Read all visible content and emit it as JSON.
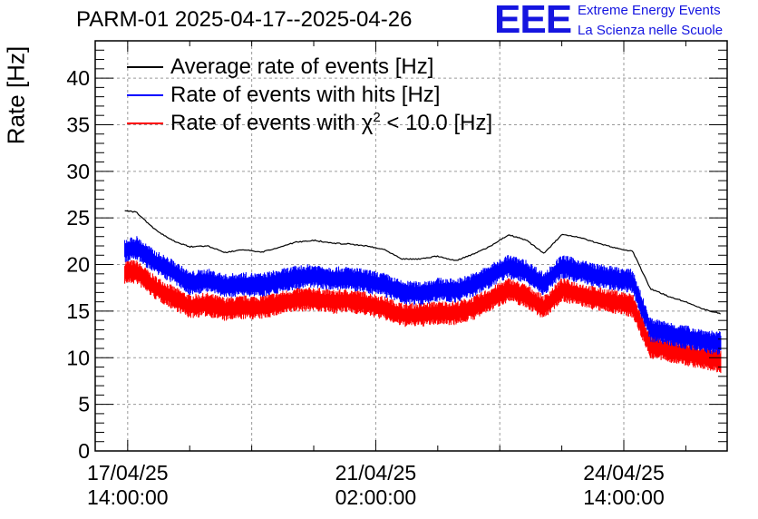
{
  "title": "PARM-01 2025-04-17--2025-04-26",
  "logo": {
    "mark": "EEE",
    "line1": "Extreme Energy Events",
    "line2": "La Scienza nelle Scuole",
    "color": "#1515e0"
  },
  "chart_data": {
    "type": "line",
    "title": "PARM-01 2025-04-17--2025-04-26",
    "xlabel": "",
    "ylabel": "Rate [Hz]",
    "ylim": [
      0,
      44
    ],
    "yticks": [
      0,
      5,
      10,
      15,
      20,
      25,
      30,
      35,
      40
    ],
    "xlim": [
      "2025-04-17 03:00",
      "2025-04-26 01:00"
    ],
    "xticks": [
      {
        "x": "2025-04-17 14:00",
        "line1": "17/04/25",
        "line2": "14:00:00"
      },
      {
        "x": "2025-04-21 02:00",
        "line1": "21/04/25",
        "line2": "02:00:00"
      },
      {
        "x": "2025-04-24 14:00",
        "line1": "24/04/25",
        "line2": "14:00:00"
      }
    ],
    "grid": true,
    "legend_position": "top-left",
    "series": [
      {
        "name": "Average rate of events [Hz]",
        "color": "#000000",
        "style": "line",
        "x": [
          "2025-04-17 13:00",
          "2025-04-17 17:00",
          "2025-04-17 23:00",
          "2025-04-18 05:00",
          "2025-04-18 11:00",
          "2025-04-18 17:00",
          "2025-04-18 23:00",
          "2025-04-19 05:00",
          "2025-04-19 11:00",
          "2025-04-19 17:00",
          "2025-04-19 23:00",
          "2025-04-20 05:00",
          "2025-04-20 11:00",
          "2025-04-20 17:00",
          "2025-04-20 23:00",
          "2025-04-21 05:00",
          "2025-04-21 11:00",
          "2025-04-21 17:00",
          "2025-04-21 23:00",
          "2025-04-22 05:00",
          "2025-04-22 11:00",
          "2025-04-22 17:00",
          "2025-04-22 23:00",
          "2025-04-23 05:00",
          "2025-04-23 11:00",
          "2025-04-23 17:00",
          "2025-04-23 23:00",
          "2025-04-24 05:00",
          "2025-04-24 11:00",
          "2025-04-24 17:00",
          "2025-04-24 23:00",
          "2025-04-25 05:00",
          "2025-04-25 11:00",
          "2025-04-25 17:00",
          "2025-04-25 23:00"
        ],
        "y": [
          25.8,
          25.6,
          23.8,
          22.6,
          21.9,
          22.0,
          21.3,
          21.6,
          21.3,
          21.8,
          22.4,
          22.6,
          22.3,
          22.2,
          22.0,
          21.6,
          20.6,
          20.6,
          20.9,
          20.4,
          21.1,
          22.0,
          23.2,
          22.6,
          21.2,
          23.2,
          22.9,
          22.3,
          21.8,
          21.4,
          17.4,
          16.6,
          16.0,
          15.2,
          14.7
        ]
      },
      {
        "name": "Rate of events with hits [Hz]",
        "color": "#0000ff",
        "style": "band",
        "x": [
          "2025-04-17 13:00",
          "2025-04-17 17:00",
          "2025-04-17 23:00",
          "2025-04-18 05:00",
          "2025-04-18 11:00",
          "2025-04-18 17:00",
          "2025-04-18 23:00",
          "2025-04-19 05:00",
          "2025-04-19 11:00",
          "2025-04-19 17:00",
          "2025-04-19 23:00",
          "2025-04-20 05:00",
          "2025-04-20 11:00",
          "2025-04-20 17:00",
          "2025-04-20 23:00",
          "2025-04-21 05:00",
          "2025-04-21 11:00",
          "2025-04-21 17:00",
          "2025-04-21 23:00",
          "2025-04-22 05:00",
          "2025-04-22 11:00",
          "2025-04-22 17:00",
          "2025-04-22 23:00",
          "2025-04-23 05:00",
          "2025-04-23 11:00",
          "2025-04-23 17:00",
          "2025-04-23 23:00",
          "2025-04-24 05:00",
          "2025-04-24 11:00",
          "2025-04-24 17:00",
          "2025-04-24 23:00",
          "2025-04-25 05:00",
          "2025-04-25 11:00",
          "2025-04-25 17:00",
          "2025-04-25 23:00"
        ],
        "y": [
          21.5,
          21.8,
          20.3,
          19.3,
          18.0,
          18.3,
          17.7,
          17.9,
          17.8,
          18.2,
          18.6,
          18.8,
          18.5,
          18.5,
          18.2,
          17.8,
          17.0,
          16.9,
          17.3,
          17.2,
          17.8,
          18.8,
          19.8,
          19.2,
          17.9,
          19.8,
          19.3,
          18.8,
          18.5,
          18.2,
          13.0,
          12.6,
          12.2,
          11.8,
          11.5
        ],
        "spread": 1.3
      },
      {
        "name_main": "Rate of events with χ",
        "name_sup": "2",
        "name_end": " < 10.0 [Hz]",
        "color": "#ff0000",
        "style": "band",
        "x": [
          "2025-04-17 13:00",
          "2025-04-17 17:00",
          "2025-04-17 23:00",
          "2025-04-18 05:00",
          "2025-04-18 11:00",
          "2025-04-18 17:00",
          "2025-04-18 23:00",
          "2025-04-19 05:00",
          "2025-04-19 11:00",
          "2025-04-19 17:00",
          "2025-04-19 23:00",
          "2025-04-20 05:00",
          "2025-04-20 11:00",
          "2025-04-20 17:00",
          "2025-04-20 23:00",
          "2025-04-21 05:00",
          "2025-04-21 11:00",
          "2025-04-21 17:00",
          "2025-04-21 23:00",
          "2025-04-22 05:00",
          "2025-04-22 11:00",
          "2025-04-22 17:00",
          "2025-04-22 23:00",
          "2025-04-23 05:00",
          "2025-04-23 11:00",
          "2025-04-23 17:00",
          "2025-04-23 23:00",
          "2025-04-24 05:00",
          "2025-04-24 11:00",
          "2025-04-24 17:00",
          "2025-04-24 23:00",
          "2025-04-25 05:00",
          "2025-04-25 11:00",
          "2025-04-25 17:00",
          "2025-04-25 23:00"
        ],
        "y": [
          19.2,
          19.2,
          17.6,
          16.5,
          15.5,
          15.7,
          15.2,
          15.4,
          15.4,
          15.8,
          16.2,
          16.3,
          16.0,
          16.1,
          15.8,
          15.3,
          14.6,
          14.6,
          14.8,
          14.8,
          15.3,
          16.3,
          17.3,
          16.6,
          15.4,
          17.3,
          16.8,
          16.3,
          16.0,
          15.6,
          11.2,
          10.8,
          10.4,
          10.0,
          9.6
        ],
        "spread": 1.3
      }
    ]
  }
}
